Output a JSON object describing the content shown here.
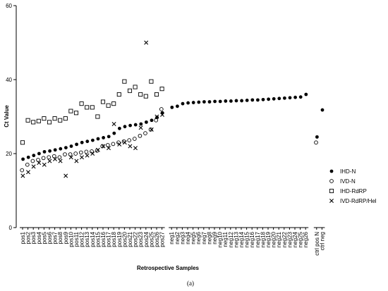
{
  "chart_data": {
    "type": "scatter",
    "title": "",
    "xlabel": "Retrospective Samples",
    "ylabel": "Ct Value",
    "ylim": [
      0,
      60
    ],
    "yticks": [
      0,
      20,
      40,
      60
    ],
    "caption": "(a)",
    "legend_position": "right",
    "categories": [
      "pos1",
      "pos2",
      "pos3",
      "pos4",
      "pos5",
      "pos6",
      "pos7",
      "pos8",
      "pos9",
      "pos10",
      "pos11",
      "pos12",
      "pos13",
      "pos14",
      "pos15",
      "pos16",
      "pos17",
      "pos18",
      "pos19",
      "pos20",
      "pos21",
      "pos22",
      "pos23",
      "pos24",
      "pos25",
      "pos26",
      "pos27",
      "neg1",
      "neg2",
      "neg3",
      "neg4",
      "neg5",
      "neg6",
      "neg7",
      "neg8",
      "neg9",
      "neg10",
      "neg11",
      "neg12",
      "neg13",
      "neg14",
      "neg15",
      "neg16",
      "neg17",
      "neg18",
      "neg19",
      "neg20",
      "neg21",
      "neg22",
      "neg23",
      "neg24",
      "neg25",
      "neg26",
      "ctrl pos N",
      "ctrl neg"
    ],
    "series": [
      {
        "name": "IHD-N",
        "marker": "filled-circle",
        "values": [
          18.5,
          19.0,
          19.5,
          20.0,
          20.5,
          20.7,
          21.0,
          21.3,
          21.6,
          22.0,
          22.5,
          23.0,
          23.3,
          23.6,
          24.0,
          24.3,
          24.6,
          25.5,
          26.8,
          27.3,
          27.6,
          27.8,
          28.0,
          28.5,
          29.0,
          29.8,
          31.0,
          32.5,
          32.8,
          33.5,
          33.7,
          33.8,
          33.9,
          34.0,
          34.0,
          34.1,
          34.1,
          34.2,
          34.2,
          34.3,
          34.3,
          34.4,
          34.5,
          34.5,
          34.6,
          34.7,
          34.8,
          34.9,
          35.0,
          35.1,
          35.2,
          35.3,
          36.0,
          24.5,
          31.8
        ]
      },
      {
        "name": "IVD-N",
        "marker": "open-circle",
        "values": [
          15.5,
          17.0,
          18.0,
          18.3,
          18.8,
          19.0,
          19.3,
          19.0,
          19.8,
          19.8,
          20.0,
          20.3,
          20.5,
          20.6,
          20.8,
          22.0,
          22.3,
          22.6,
          23.0,
          23.3,
          23.6,
          24.0,
          24.8,
          25.5,
          26.5,
          29.0,
          32.0,
          null,
          null,
          null,
          null,
          null,
          null,
          null,
          null,
          null,
          null,
          null,
          null,
          null,
          null,
          null,
          null,
          null,
          null,
          null,
          null,
          null,
          null,
          null,
          null,
          null,
          null,
          23.0,
          null
        ]
      },
      {
        "name": "IHD-RdRP",
        "marker": "open-square",
        "values": [
          23.0,
          29.0,
          28.5,
          28.8,
          29.5,
          28.5,
          29.5,
          29.0,
          29.5,
          31.5,
          31.0,
          33.5,
          32.5,
          32.5,
          30.0,
          34.0,
          33.0,
          33.5,
          36.0,
          39.5,
          37.0,
          38.0,
          36.0,
          35.5,
          39.5,
          36.0,
          37.5,
          null,
          null,
          null,
          null,
          null,
          null,
          null,
          null,
          null,
          null,
          null,
          null,
          null,
          null,
          null,
          null,
          null,
          null,
          null,
          null,
          null,
          null,
          null,
          null,
          null,
          null,
          null,
          null
        ]
      },
      {
        "name": "IVD-RdRP/Hel",
        "marker": "x",
        "values": [
          14.0,
          15.0,
          16.5,
          17.5,
          17.0,
          18.0,
          18.5,
          18.0,
          14.0,
          19.0,
          18.0,
          19.0,
          19.5,
          20.0,
          21.0,
          22.0,
          21.5,
          28.0,
          22.5,
          23.0,
          22.0,
          21.5,
          27.0,
          50.0,
          26.5,
          30.0,
          30.5,
          null,
          null,
          null,
          null,
          null,
          null,
          null,
          null,
          null,
          null,
          null,
          null,
          null,
          null,
          null,
          null,
          null,
          null,
          null,
          null,
          null,
          null,
          null,
          null,
          null,
          null,
          null,
          null
        ]
      }
    ]
  }
}
